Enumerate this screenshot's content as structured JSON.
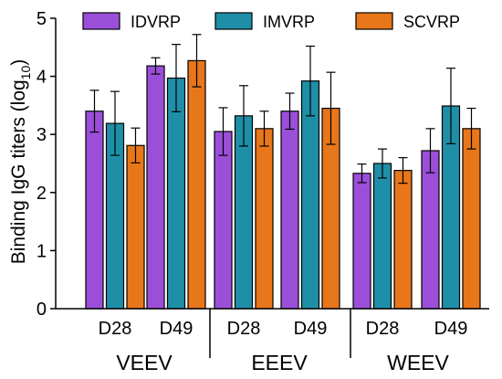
{
  "chart_data": {
    "type": "bar",
    "ylabel": "Binding IgG titers (log",
    "ylabel_subscript": "10",
    "ylabel_suffix": ")",
    "ylim": [
      0,
      5
    ],
    "yticks": [
      "0",
      "1",
      "2",
      "3",
      "4",
      "5"
    ],
    "groups": [
      "VEEV",
      "EEEV",
      "WEEV"
    ],
    "categories": [
      "D28",
      "D49",
      "D28",
      "D49",
      "D28",
      "D49"
    ],
    "legend_position": "top",
    "series": [
      {
        "name": "IDVRP",
        "color": "#9b4fd9",
        "values": [
          3.4,
          4.18,
          3.05,
          3.4,
          2.33,
          2.72
        ],
        "errors": [
          0.36,
          0.14,
          0.41,
          0.31,
          0.16,
          0.38
        ]
      },
      {
        "name": "IMVRP",
        "color": "#1f8fa8",
        "values": [
          3.19,
          3.97,
          3.32,
          3.92,
          2.5,
          3.49
        ],
        "errors": [
          0.55,
          0.58,
          0.52,
          0.6,
          0.25,
          0.65
        ]
      },
      {
        "name": "SCVRP",
        "color": "#e8761a",
        "values": [
          2.81,
          4.27,
          3.1,
          3.45,
          2.38,
          3.1
        ],
        "errors": [
          0.3,
          0.45,
          0.3,
          0.62,
          0.22,
          0.35
        ]
      }
    ]
  }
}
